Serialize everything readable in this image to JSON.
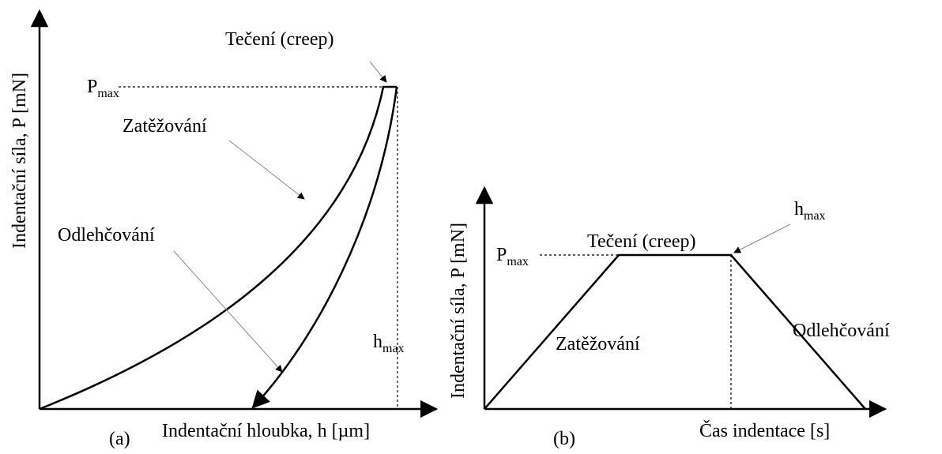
{
  "panel_a": {
    "y_axis_label": "Indentační síla, P [mN]",
    "x_axis_label": "Indentační hloubka, h [µm]",
    "caption": "(a)",
    "creep_label": "Tečení (creep)",
    "pmax_label": {
      "symbol": "P",
      "subscript": "max"
    },
    "loading_label": "Zatěžování",
    "unloading_label": "Odlehčování",
    "hmax_label": {
      "symbol": "h",
      "subscript": "max"
    }
  },
  "panel_b": {
    "y_axis_label": "Indentační síla, P [mN]",
    "x_axis_label": "Čas indentace [s]",
    "caption": "(b)",
    "creep_label": "Tečení (creep)",
    "pmax_label": {
      "symbol": "P",
      "subscript": "max"
    },
    "hmax_label": {
      "symbol": "h",
      "subscript": "max"
    },
    "loading_label": "Zatěžování",
    "unloading_label": "Odlehčování"
  }
}
